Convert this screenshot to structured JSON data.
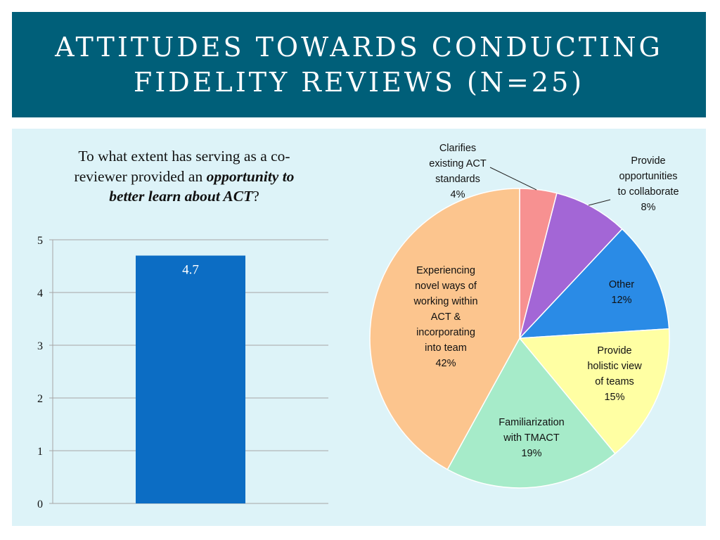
{
  "title": {
    "line1": "ATTITUDES TOWARDS CONDUCTING",
    "line2": "FIDELITY REVIEWS (N=25)"
  },
  "question": {
    "part1": "To what extent has serving as a co-reviewer provided an ",
    "emphasis": "opportunity to better learn about ACT",
    "part2": "?"
  },
  "chart_data": [
    {
      "type": "bar",
      "categories": [
        ""
      ],
      "values": [
        4.7
      ],
      "data_labels": [
        "4.7"
      ],
      "ylim": [
        0,
        5
      ],
      "yticks": [
        0,
        1,
        2,
        3,
        4,
        5
      ],
      "grid": true,
      "colors": {
        "bar": "#0c6dc4",
        "grid": "#a6a6a6",
        "label": "#ffffff"
      }
    },
    {
      "type": "pie",
      "slices": [
        {
          "name": "clarifies",
          "label_lines": [
            "Clarifies",
            "existing ACT",
            "standards",
            "4%"
          ],
          "value": 4,
          "color": "#f79191"
        },
        {
          "name": "collaborate",
          "label_lines": [
            "Provide",
            "opportunities",
            "to collaborate",
            "8%"
          ],
          "value": 8,
          "color": "#a366d6"
        },
        {
          "name": "other",
          "label_lines": [
            "Other",
            "12%"
          ],
          "value": 12,
          "color": "#2a8be6"
        },
        {
          "name": "holistic",
          "label_lines": [
            "Provide",
            "holistic view",
            "of teams",
            "15%"
          ],
          "value": 15,
          "color": "#ffffa3"
        },
        {
          "name": "familiarization",
          "label_lines": [
            "Familiarization",
            "with TMACT",
            "19%"
          ],
          "value": 19,
          "color": "#a6ebc9"
        },
        {
          "name": "experiencing",
          "label_lines": [
            "Experiencing",
            "novel ways of",
            "working within",
            "ACT &",
            "incorporating",
            "into team",
            "42%"
          ],
          "value": 42,
          "color": "#fcc58e"
        }
      ]
    }
  ]
}
